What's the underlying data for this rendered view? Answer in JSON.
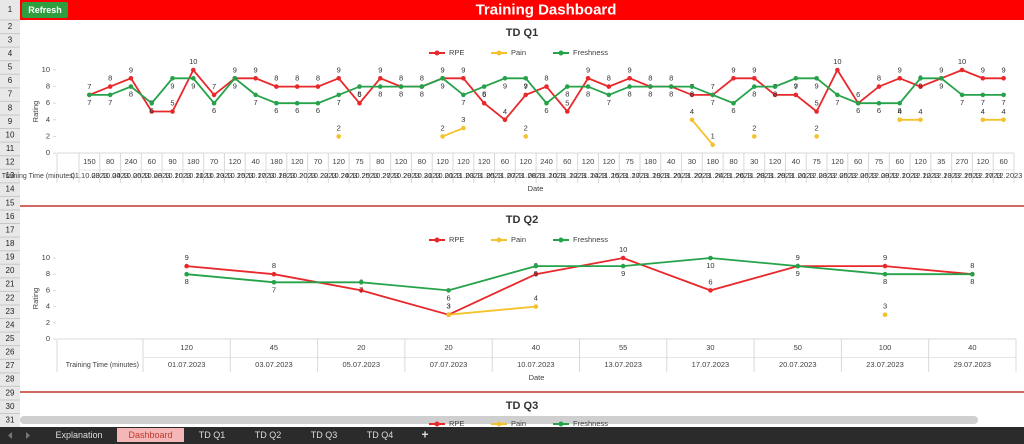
{
  "header": {
    "button": "Refresh",
    "title": "Training Dashboard"
  },
  "row_headers": [
    1,
    2,
    3,
    4,
    5,
    6,
    7,
    8,
    9,
    10,
    11,
    12,
    13,
    14,
    15,
    16,
    17,
    18,
    19,
    20,
    21,
    22,
    23,
    24,
    25,
    26,
    27,
    28,
    29,
    30,
    31
  ],
  "tabs": [
    "Explanation",
    "Dashboard",
    "TD Q1",
    "TD Q2",
    "TD Q3",
    "TD Q4",
    "+"
  ],
  "active_tab": 1,
  "chart_data": [
    {
      "type": "line",
      "title": "TD Q1",
      "legend": "top",
      "y_label": "Rating",
      "x_label": "Date",
      "training_time_label": "Training Time (minutes)",
      "categories": [
        "01.10.2023",
        "03.10.2023",
        "04.10.2023",
        "06.10.2023",
        "08.10.2023",
        "10.10.2023",
        "11.10.2023",
        "13.10.2023",
        "15.10.2023",
        "17.10.2023",
        "18.10.2023",
        "20.10.2023",
        "22.10.2023",
        "24.10.2023",
        "25.10.2023",
        "27.10.2023",
        "29.10.2023",
        "31.10.2023",
        "01.11.2023",
        "03.11.2023",
        "05.11.2023",
        "07.11.2023",
        "08.11.2023",
        "10.11.2023",
        "12.11.2023",
        "14.11.2023",
        "15.11.2023",
        "17.11.2023",
        "19.11.2023",
        "21.11.2023",
        "22.11.2023",
        "24.11.2023",
        "26.11.2023",
        "28.11.2023",
        "29.11.2023",
        "01.12.2023",
        "03.12.2023",
        "05.12.2023",
        "06.12.2023",
        "08.12.2023",
        "10.12.2023",
        "12.12.2023",
        "13.12.2023",
        "15.12.2023",
        "17.12.2023"
      ],
      "training_time": [
        150,
        80,
        240,
        60,
        90,
        180,
        70,
        120,
        40,
        180,
        120,
        70,
        120,
        75,
        80,
        120,
        80,
        120,
        120,
        120,
        60,
        120,
        240,
        60,
        120,
        120,
        75,
        180,
        40,
        30,
        180,
        80,
        30,
        120,
        40,
        75,
        120,
        60,
        75,
        60,
        120,
        35,
        270,
        120,
        60
      ],
      "ylim": [
        0,
        10
      ],
      "yticks": [
        0,
        2,
        4,
        6,
        8,
        10
      ],
      "series": [
        {
          "name": "RPE",
          "color": "#e8282b",
          "values": [
            7,
            8,
            9,
            5,
            5,
            10,
            7,
            9,
            9,
            8,
            8,
            8,
            9,
            6,
            9,
            8,
            8,
            9,
            9,
            6,
            4,
            7,
            8,
            5,
            9,
            8,
            9,
            8,
            8,
            7,
            7,
            9,
            9,
            7,
            7,
            5,
            10,
            6,
            8,
            9,
            8,
            9,
            10,
            9,
            9
          ]
        },
        {
          "name": "Pain",
          "color": "#f5c12c",
          "values": [
            null,
            null,
            null,
            null,
            null,
            null,
            null,
            null,
            null,
            null,
            null,
            null,
            2,
            null,
            null,
            null,
            null,
            2,
            3,
            null,
            null,
            2,
            null,
            null,
            null,
            null,
            null,
            null,
            null,
            4,
            1,
            null,
            2,
            null,
            null,
            2,
            null,
            null,
            null,
            4,
            4,
            null,
            null,
            4,
            4
          ]
        },
        {
          "name": "Freshness",
          "color": "#25a24a",
          "values": [
            7,
            7,
            8,
            6,
            9,
            9,
            6,
            9,
            7,
            6,
            6,
            6,
            7,
            8,
            8,
            8,
            8,
            9,
            7,
            8,
            9,
            9,
            6,
            8,
            8,
            7,
            8,
            8,
            8,
            8,
            7,
            6,
            8,
            8,
            9,
            9,
            7,
            6,
            6,
            6,
            9,
            9,
            7,
            7,
            7
          ]
        }
      ]
    },
    {
      "type": "line",
      "title": "TD Q2",
      "legend": "top",
      "y_label": "Rating",
      "x_label": "Date",
      "training_time_label": "Training Time (minutes)",
      "categories": [
        "01.07.2023",
        "03.07.2023",
        "05.07.2023",
        "07.07.2023",
        "10.07.2023",
        "13.07.2023",
        "17.07.2023",
        "20.07.2023",
        "23.07.2023",
        "29.07.2023"
      ],
      "training_time": [
        120,
        45,
        20,
        20,
        40,
        55,
        30,
        50,
        100,
        40
      ],
      "ylim": [
        0,
        10
      ],
      "yticks": [
        0,
        2,
        4,
        6,
        8,
        10
      ],
      "series": [
        {
          "name": "RPE",
          "color": "#e8282b",
          "values": [
            9,
            8,
            6,
            3,
            8,
            10,
            6,
            9,
            9,
            8
          ]
        },
        {
          "name": "Pain",
          "color": "#f5c12c",
          "values": [
            null,
            null,
            null,
            3,
            4,
            null,
            null,
            null,
            3,
            null
          ]
        },
        {
          "name": "Freshness",
          "color": "#25a24a",
          "values": [
            8,
            7,
            7,
            6,
            9,
            9,
            10,
            9,
            8,
            8
          ]
        }
      ]
    },
    {
      "type": "line",
      "title": "TD Q3",
      "legend": "top",
      "series": [
        {
          "name": "RPE",
          "color": "#e8282b"
        },
        {
          "name": "Pain",
          "color": "#f5c12c"
        },
        {
          "name": "Freshness",
          "color": "#25a24a"
        }
      ]
    }
  ]
}
